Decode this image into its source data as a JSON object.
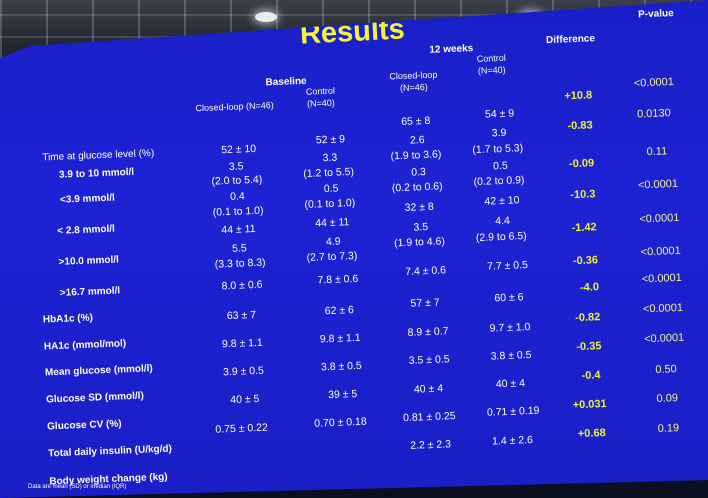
{
  "title": "Results",
  "headers": {
    "baseline": "Baseline",
    "weeks12": "12 weeks",
    "closed_loop_1": "Closed-loop (N=46)",
    "control_1": "Control\n(N=40)",
    "closed_loop_2": "Closed-loop\n(N=46)",
    "control_2": "Control\n(N=40)",
    "difference": "Difference",
    "pvalue": "P-value"
  },
  "row_labels": [
    "Time at glucose level (%)",
    "3.9 to 10 mmol/l",
    "<3.9 mmol/l",
    "< 2.8 mmol/l",
    ">10.0 mmol/l",
    ">16.7 mmol/l",
    "HbA1c (%)",
    "HA1c (mmol/mol)",
    "Mean glucose (mmol/l)",
    "Glucose  SD (mmol/l)",
    "Glucose CV (%)",
    "Total daily insulin (U/kg/d)",
    "Body weight change (kg)"
  ],
  "baseline_closed": [
    "52 ± 10",
    "3.5",
    "(2.0 to 5.4)",
    "0.4",
    "(0.1 to 1.0)",
    "44 ± 11",
    "5.5",
    "(3.3 to 8.3)",
    "8.0 ± 0.6",
    "63 ± 7",
    "9.8 ± 1.1",
    "3.9 ± 0.5",
    "40 ± 5",
    "0.75 ± 0.22"
  ],
  "baseline_control": [
    "52 ± 9",
    "3.3",
    "(1.2 to 5.5)",
    "0.5",
    "(0.1 to 1.0)",
    "44 ± 11",
    "4.9",
    "(2.7 to 7.3)",
    "7.8 ± 0.6",
    "62 ± 6",
    "9.8 ± 1.1",
    "3.8 ± 0.5",
    "39 ± 5",
    "0.70 ± 0.18"
  ],
  "w12_closed": [
    "65 ± 8",
    "2.6",
    "(1.9 to 3.6)",
    "0.3",
    "(0.2 to 0.6)",
    "32 ± 8",
    "3.5",
    "(1.9 to 4.6)",
    "7.4 ± 0.6",
    "57 ± 7",
    "8.9 ± 0.7",
    "3.5 ± 0.5",
    "40 ± 4",
    "0.81 ± 0.25",
    "2.2 ± 2.3"
  ],
  "w12_control": [
    "54 ± 9",
    "3.9",
    "(1.7 to 5.3)",
    "0.5",
    "(0.2 to 0.9)",
    "42 ± 10",
    "4.4",
    "(2.9 to 6.5)",
    "7.7 ± 0.5",
    "60 ± 6",
    "9.7 ± 1.0",
    "3.8 ± 0.5",
    "40 ± 4",
    "0.71 ± 0.19",
    "1.4 ± 2.6"
  ],
  "difference": [
    "+10.8",
    "-0.83",
    "-0.09",
    "-10.3",
    "-1.42",
    "-0.36",
    "-4.0",
    "-0.82",
    "-0.35",
    "-0.4",
    "+0.031",
    "+0.68"
  ],
  "pvalue": [
    "<0.0001",
    "0.0130",
    "0.11",
    "<0.0001",
    "<0.0001",
    "<0.0001",
    "<0.0001",
    "<0.0001",
    "<0.0001",
    "0.50",
    "0.09",
    "0.19"
  ],
  "footnote": "Data are mean (SD) or median (IQR)"
}
